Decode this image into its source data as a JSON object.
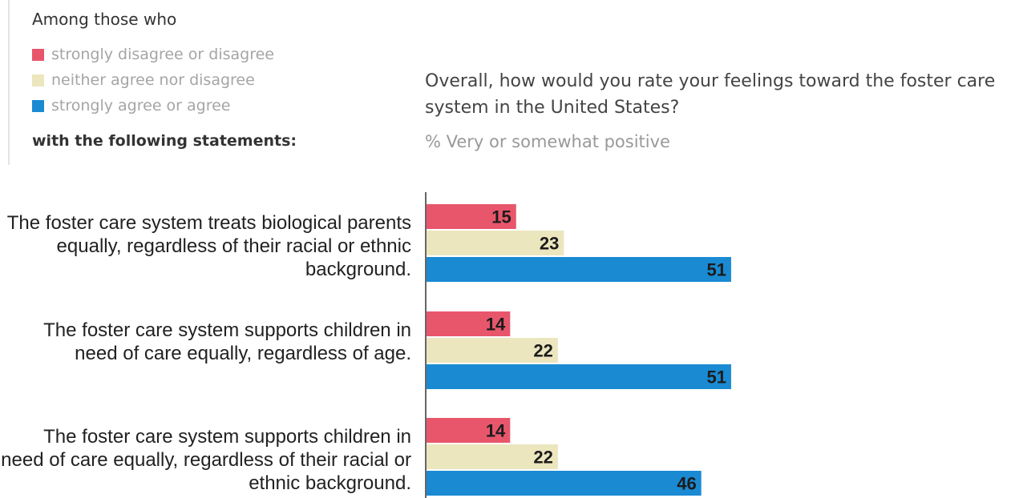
{
  "legend": {
    "heading": "Among those who",
    "items": [
      {
        "label": "strongly disagree or disagree",
        "color": "#e8566c"
      },
      {
        "label": "neither agree nor disagree",
        "color": "#ece6be"
      },
      {
        "label": "strongly agree or agree",
        "color": "#1a8ad3"
      }
    ],
    "footer": "with the following statements:"
  },
  "question": "Overall, how would you rate your feelings toward the foster care system in the United States?",
  "subtitle": "% Very or somewhat positive",
  "chart_data": {
    "type": "bar",
    "orientation": "horizontal",
    "categories": [
      "The foster care system treats biological parents equally, regardless of their racial or ethnic background.",
      "The foster care system supports children in need of care equally, regardless of age.",
      "The foster care system supports children in need of care equally, regardless of their racial or ethnic background."
    ],
    "series": [
      {
        "name": "strongly disagree or disagree",
        "color": "#e8566c",
        "values": [
          15,
          14,
          14
        ]
      },
      {
        "name": "neither agree nor disagree",
        "color": "#ece6be",
        "values": [
          23,
          22,
          22
        ]
      },
      {
        "name": "strongly agree or agree",
        "color": "#1a8ad3",
        "values": [
          51,
          51,
          46
        ]
      }
    ],
    "title": "Overall, how would you rate your feelings toward the foster care system in the United States?",
    "subtitle": "% Very or somewhat positive",
    "xlim": [
      0,
      100
    ],
    "grid": false,
    "legend_position": "top-left"
  }
}
